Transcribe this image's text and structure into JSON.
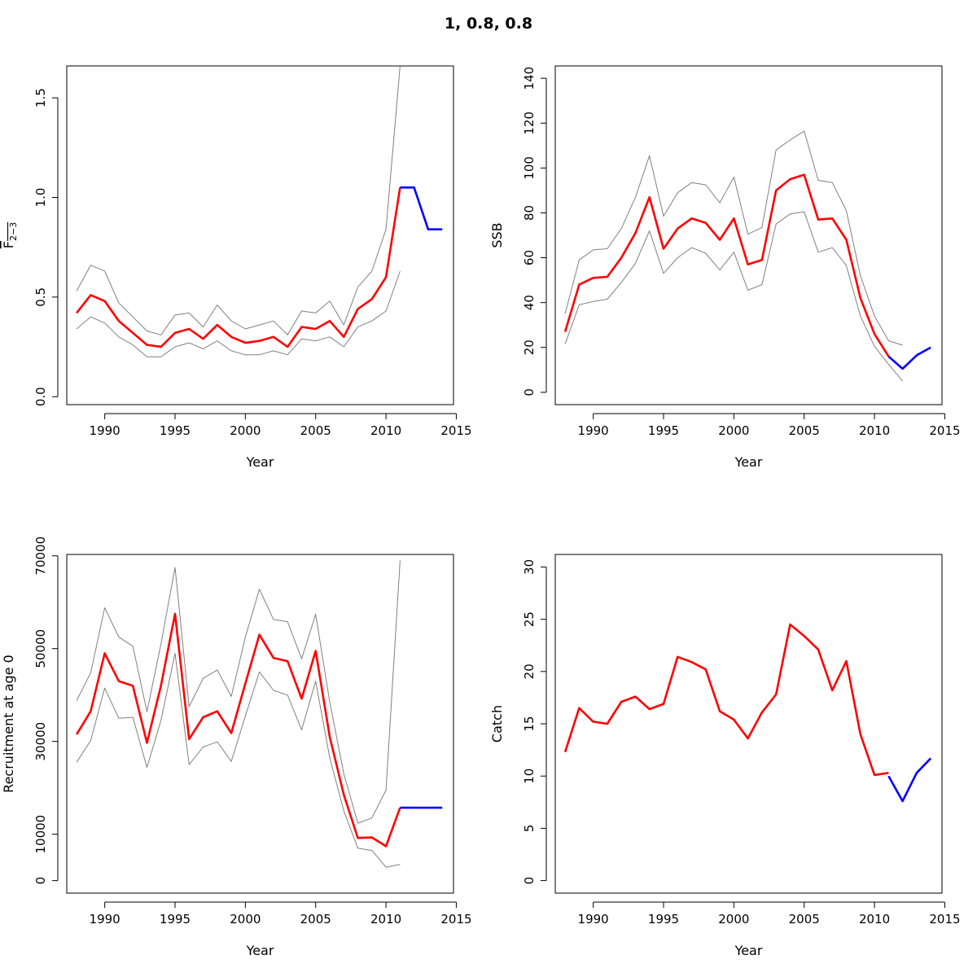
{
  "title": "1, 0.8, 0.8",
  "colors": {
    "estimate": "#ff0000",
    "forecast": "#0000ff",
    "interval": "#808080"
  },
  "chart_data": [
    {
      "type": "line",
      "id": "fbar",
      "xlabel": "Year",
      "ylabel_main": "F",
      "ylabel_sub": "2−3",
      "xlim": [
        1987.3,
        2014.8
      ],
      "ylim": [
        -0.04,
        1.66
      ],
      "xticks": [
        1990,
        1995,
        2000,
        2005,
        2010,
        2015
      ],
      "yticks": [
        0.0,
        0.5,
        1.0,
        1.5
      ],
      "ytick_labels": [
        "0.0",
        "0.5",
        "1.0",
        "1.5"
      ],
      "series": [
        {
          "role": "estimate",
          "x": [
            1988,
            1989,
            1990,
            1991,
            1992,
            1993,
            1994,
            1995,
            1996,
            1997,
            1998,
            1999,
            2000,
            2001,
            2002,
            2003,
            2004,
            2005,
            2006,
            2007,
            2008,
            2009,
            2010,
            2011
          ],
          "y": [
            0.42,
            0.51,
            0.48,
            0.38,
            0.32,
            0.26,
            0.25,
            0.32,
            0.34,
            0.29,
            0.36,
            0.3,
            0.27,
            0.28,
            0.3,
            0.25,
            0.35,
            0.34,
            0.38,
            0.3,
            0.44,
            0.49,
            0.6,
            1.05
          ]
        },
        {
          "role": "upper",
          "x": [
            1988,
            1989,
            1990,
            1991,
            1992,
            1993,
            1994,
            1995,
            1996,
            1997,
            1998,
            1999,
            2000,
            2001,
            2002,
            2003,
            2004,
            2005,
            2006,
            2007,
            2008,
            2009,
            2010,
            2011
          ],
          "y": [
            0.53,
            0.66,
            0.63,
            0.47,
            0.4,
            0.33,
            0.31,
            0.41,
            0.42,
            0.35,
            0.46,
            0.38,
            0.34,
            0.36,
            0.38,
            0.31,
            0.43,
            0.42,
            0.48,
            0.36,
            0.55,
            0.63,
            0.84,
            1.66
          ]
        },
        {
          "role": "lower",
          "x": [
            1988,
            1989,
            1990,
            1991,
            1992,
            1993,
            1994,
            1995,
            1996,
            1997,
            1998,
            1999,
            2000,
            2001,
            2002,
            2003,
            2004,
            2005,
            2006,
            2007,
            2008,
            2009,
            2010,
            2011
          ],
          "y": [
            0.34,
            0.4,
            0.37,
            0.3,
            0.26,
            0.2,
            0.2,
            0.25,
            0.27,
            0.24,
            0.28,
            0.23,
            0.21,
            0.21,
            0.23,
            0.21,
            0.29,
            0.28,
            0.3,
            0.25,
            0.35,
            0.38,
            0.43,
            0.63
          ]
        },
        {
          "role": "forecast",
          "x": [
            2011,
            2012,
            2013,
            2014
          ],
          "y": [
            1.05,
            1.05,
            0.84,
            0.84
          ]
        }
      ]
    },
    {
      "type": "line",
      "id": "ssb",
      "xlabel": "Year",
      "ylabel": "SSB",
      "xlim": [
        1987.3,
        2014.8
      ],
      "ylim": [
        -5.5,
        145.5
      ],
      "xticks": [
        1990,
        1995,
        2000,
        2005,
        2010,
        2015
      ],
      "yticks": [
        0,
        20,
        40,
        60,
        80,
        100,
        120,
        140
      ],
      "ytick_labels": [
        "0",
        "20",
        "40",
        "60",
        "80",
        "100",
        "120",
        "140"
      ],
      "series": [
        {
          "role": "estimate",
          "x": [
            1988,
            1989,
            1990,
            1991,
            1992,
            1993,
            1994,
            1995,
            1996,
            1997,
            1998,
            1999,
            2000,
            2001,
            2002,
            2003,
            2004,
            2005,
            2006,
            2007,
            2008,
            2009,
            2010,
            2011
          ],
          "y": [
            27,
            48,
            51,
            51.5,
            60,
            71,
            87,
            64,
            73,
            77.5,
            75.5,
            68,
            77.5,
            57,
            59,
            90,
            95,
            97,
            77,
            77.5,
            68,
            42,
            26,
            16
          ]
        },
        {
          "role": "upper",
          "x": [
            1988,
            1989,
            1990,
            1991,
            1992,
            1993,
            1994,
            1995,
            1996,
            1997,
            1998,
            1999,
            2000,
            2001,
            2002,
            2003,
            2004,
            2005,
            2006,
            2007,
            2008,
            2009,
            2010,
            2011,
            2012
          ],
          "y": [
            35,
            59,
            63.5,
            64,
            73,
            87,
            105.5,
            78.5,
            89,
            93.5,
            92.5,
            84.5,
            96,
            70.5,
            73.5,
            108,
            112.5,
            116.5,
            94.5,
            93.5,
            81,
            52,
            34,
            23,
            21
          ]
        },
        {
          "role": "lower",
          "x": [
            1988,
            1989,
            1990,
            1991,
            1992,
            1993,
            1994,
            1995,
            1996,
            1997,
            1998,
            1999,
            2000,
            2001,
            2002,
            2003,
            2004,
            2005,
            2006,
            2007,
            2008,
            2009,
            2010,
            2011,
            2012
          ],
          "y": [
            21.5,
            39,
            40.5,
            41.5,
            49,
            57.5,
            72,
            53,
            60,
            64.5,
            62,
            54.5,
            62.5,
            45.5,
            48,
            75,
            79.5,
            80.5,
            62.5,
            64.5,
            56.5,
            34,
            20.5,
            12.5,
            5
          ]
        },
        {
          "role": "forecast",
          "x": [
            2011,
            2012,
            2013,
            2014
          ],
          "y": [
            16,
            10.5,
            16.5,
            20
          ]
        }
      ]
    },
    {
      "type": "line",
      "id": "recruitment",
      "xlabel": "Year",
      "ylabel": "Recruitment at age 0",
      "xlim": [
        1987.3,
        2014.8
      ],
      "ylim": [
        -2700,
        70300
      ],
      "xticks": [
        1990,
        1995,
        2000,
        2005,
        2010,
        2015
      ],
      "yticks": [
        0,
        10000,
        30000,
        50000,
        70000
      ],
      "ytick_labels": [
        "0",
        "10000",
        "30000",
        "50000",
        "70000"
      ],
      "series": [
        {
          "role": "estimate",
          "x": [
            1988,
            1989,
            1990,
            1991,
            1992,
            1993,
            1994,
            1995,
            1996,
            1997,
            1998,
            1999,
            2000,
            2001,
            2002,
            2003,
            2004,
            2005,
            2006,
            2007,
            2008,
            2009,
            2010,
            2011
          ],
          "y": [
            31500,
            36500,
            49000,
            43000,
            42000,
            29700,
            42000,
            57500,
            30500,
            35200,
            36500,
            31800,
            42500,
            53000,
            48000,
            47300,
            39200,
            49500,
            31000,
            18500,
            9200,
            9300,
            7400,
            15700
          ]
        },
        {
          "role": "upper",
          "x": [
            1988,
            1989,
            1990,
            1991,
            1992,
            1993,
            1994,
            1995,
            1996,
            1997,
            1998,
            1999,
            2000,
            2001,
            2002,
            2003,
            2004,
            2005,
            2006,
            2007,
            2008,
            2009,
            2010,
            2011
          ],
          "y": [
            38800,
            44800,
            58800,
            52500,
            50500,
            36400,
            51000,
            67500,
            37500,
            43600,
            45400,
            39700,
            52500,
            62800,
            56300,
            55800,
            47800,
            57400,
            38500,
            23000,
            12400,
            13500,
            19500,
            69000
          ]
        },
        {
          "role": "lower",
          "x": [
            1988,
            1989,
            1990,
            1991,
            1992,
            1993,
            1994,
            1995,
            1996,
            1997,
            1998,
            1999,
            2000,
            2001,
            2002,
            2003,
            2004,
            2005,
            2006,
            2007,
            2008,
            2009,
            2010,
            2011
          ],
          "y": [
            25500,
            30200,
            41500,
            35000,
            35200,
            24400,
            34500,
            49000,
            25000,
            28800,
            29900,
            25700,
            35500,
            45000,
            41000,
            40000,
            32500,
            43000,
            26500,
            15000,
            7000,
            6500,
            2900,
            3500
          ]
        },
        {
          "role": "forecast",
          "x": [
            2011,
            2012,
            2013,
            2014
          ],
          "y": [
            15700,
            15700,
            15700,
            15700
          ]
        }
      ]
    },
    {
      "type": "line",
      "id": "catch",
      "xlabel": "Year",
      "ylabel": "Catch",
      "xlim": [
        1987.3,
        2014.8
      ],
      "ylim": [
        -1.2,
        31.2
      ],
      "xticks": [
        1990,
        1995,
        2000,
        2005,
        2010,
        2015
      ],
      "yticks": [
        0,
        5,
        10,
        15,
        20,
        25,
        30
      ],
      "ytick_labels": [
        "0",
        "5",
        "10",
        "15",
        "20",
        "25",
        "30"
      ],
      "series": [
        {
          "role": "estimate",
          "x": [
            1988,
            1989,
            1990,
            1991,
            1992,
            1993,
            1994,
            1995,
            1996,
            1997,
            1998,
            1999,
            2000,
            2001,
            2002,
            2003,
            2004,
            2005,
            2006,
            2007,
            2008,
            2009,
            2010,
            2011
          ],
          "y": [
            12.3,
            16.5,
            15.2,
            15.0,
            17.1,
            17.6,
            16.4,
            16.9,
            21.4,
            20.9,
            20.2,
            16.2,
            15.4,
            13.6,
            16.1,
            17.8,
            24.5,
            23.4,
            22.1,
            18.2,
            21.0,
            14.0,
            10.1,
            10.3
          ]
        },
        {
          "role": "forecast",
          "x": [
            2011,
            2012,
            2013,
            2014
          ],
          "y": [
            10.0,
            7.6,
            10.3,
            11.7
          ]
        }
      ]
    }
  ]
}
